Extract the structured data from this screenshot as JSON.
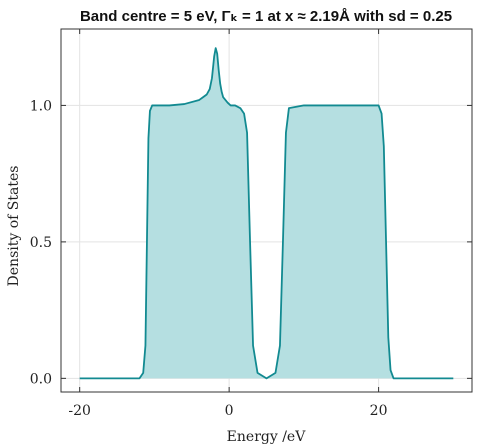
{
  "chart_data": {
    "type": "area",
    "title": "Band centre = 5 eV, Γₖ = 1 at x ≈ 2.19Å with sd = 0.25",
    "xlabel": "Energy /eV",
    "ylabel": "Density of States",
    "xlim": [
      -22.5,
      32.5
    ],
    "ylim": [
      -0.05,
      1.28
    ],
    "xticks": [
      -20,
      0,
      20
    ],
    "xtick_labels": [
      "-20",
      "0",
      "20"
    ],
    "yticks": [
      0.0,
      0.5,
      1.0
    ],
    "ytick_labels": [
      "0.0",
      "0.5",
      "1.0"
    ],
    "grid": true,
    "line_color": "#128a91",
    "fill_color": "#b5dfe1",
    "series": [
      {
        "x": [
          -20,
          -12,
          -11.5,
          -11.2,
          -11,
          -10.8,
          -10.6,
          -10.3,
          -10,
          -8,
          -6,
          -4,
          -3.5,
          -3,
          -2.6,
          -2.3,
          -2,
          -1.8,
          -1.6,
          -1.4,
          -1.2,
          -1.0,
          -0.8,
          -0.5,
          -0.2,
          0.2,
          0.8,
          1.5,
          2.0,
          2.4,
          2.8,
          3.2,
          3.8,
          5,
          6.2,
          6.8,
          7.2,
          7.6,
          8,
          10,
          14,
          17,
          19,
          20,
          20.4,
          20.7,
          21,
          21.3,
          21.6,
          22,
          30
        ],
        "y": [
          0,
          0,
          0.02,
          0.12,
          0.5,
          0.88,
          0.98,
          1.0,
          1.0,
          1.0,
          1.005,
          1.02,
          1.03,
          1.04,
          1.06,
          1.1,
          1.18,
          1.21,
          1.19,
          1.13,
          1.08,
          1.05,
          1.03,
          1.02,
          1.01,
          1.0,
          1.0,
          0.99,
          0.97,
          0.9,
          0.5,
          0.12,
          0.02,
          0.0,
          0.02,
          0.12,
          0.5,
          0.9,
          0.99,
          1.0,
          1.0,
          1.0,
          1.0,
          1.0,
          0.97,
          0.85,
          0.5,
          0.15,
          0.03,
          0,
          0
        ]
      }
    ]
  }
}
